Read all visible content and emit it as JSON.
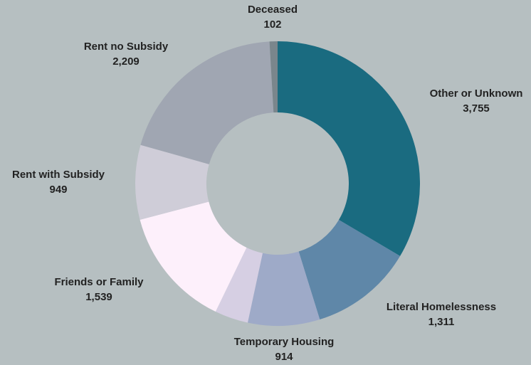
{
  "chart_data": {
    "type": "donut",
    "categories": [
      "Other or Unknown",
      "Literal Homelessness",
      "Temporary Housing",
      null,
      "Friends or Family",
      "Rent with Subsidy",
      "Rent no Subsidy",
      "Deceased"
    ],
    "values": [
      3755,
      1311,
      914,
      426,
      1539,
      949,
      2209,
      102
    ],
    "value_labels": [
      "3,755",
      "1,311",
      "914",
      null,
      "1,539",
      "949",
      "2,209",
      "102"
    ],
    "colors": [
      "#1a6b80",
      "#5f87a8",
      "#9eaac8",
      "#d6cfe3",
      "#fdf0fb",
      "#cfcdd8",
      "#a0a6b2",
      "#7a868c"
    ]
  }
}
